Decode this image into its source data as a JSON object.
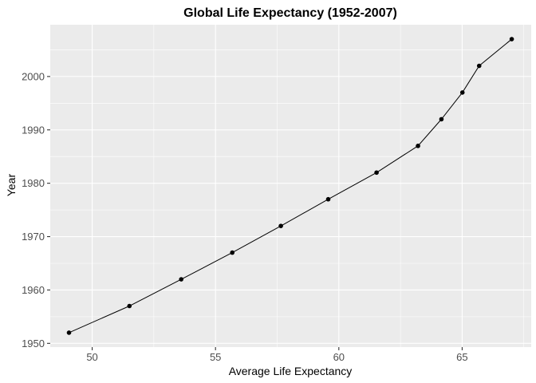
{
  "chart_data": {
    "type": "line",
    "title": "Global Life Expectancy (1952-2007)",
    "xlabel": "Average Life Expectancy",
    "ylabel": "Year",
    "xlim": [
      48.3,
      67.8
    ],
    "ylim": [
      1949.3,
      2009.7
    ],
    "x_ticks": [
      50,
      55,
      60,
      65
    ],
    "x_tick_labels": [
      "50",
      "55",
      "60",
      "65"
    ],
    "y_ticks": [
      1950,
      1960,
      1970,
      1980,
      1990,
      2000
    ],
    "y_tick_labels": [
      "1950",
      "1960",
      "1970",
      "1980",
      "1990",
      "2000"
    ],
    "grid": true,
    "legend": "none",
    "colors": {
      "panel": "#ebebeb",
      "grid_major": "#ffffff",
      "line": "#000000",
      "point": "#000000",
      "tick": "#333333"
    },
    "series": [
      {
        "x": [
          49.06,
          51.51,
          53.61,
          55.68,
          57.65,
          59.57,
          61.53,
          63.21,
          64.16,
          65.01,
          65.69,
          67.01
        ],
        "y": [
          1952,
          1957,
          1962,
          1967,
          1972,
          1977,
          1982,
          1987,
          1992,
          1997,
          2002,
          2007
        ]
      }
    ]
  }
}
